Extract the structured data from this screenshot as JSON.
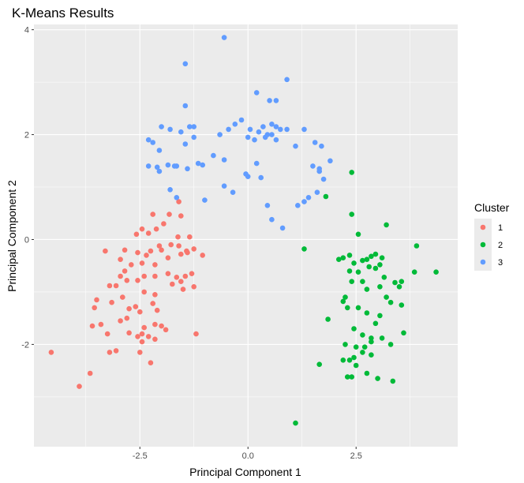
{
  "chart_data": {
    "type": "scatter",
    "title": "K-Means Results",
    "xlabel": "Principal Component 1",
    "ylabel": "Principal Component 2",
    "xlim": [
      -4.95,
      4.85
    ],
    "ylim": [
      -3.95,
      4.1
    ],
    "x_ticks": [
      -2.5,
      0.0,
      2.5
    ],
    "x_tick_labels": [
      "-2.5",
      "0.0",
      "2.5"
    ],
    "y_ticks": [
      -2,
      0,
      2,
      4
    ],
    "y_tick_labels": [
      "-2",
      "0",
      "2",
      "4"
    ],
    "grid": true,
    "legend": {
      "title": "Cluster",
      "position": "right"
    },
    "colors": {
      "panel": "#ebebeb",
      "grid": "#ffffff",
      "1": "#f8766d",
      "2": "#00ba38",
      "3": "#619cff"
    },
    "series": [
      {
        "name": "1",
        "color": "#f8766d",
        "points": [
          [
            -1.6,
            0.72
          ],
          [
            -1.82,
            0.48
          ],
          [
            -1.95,
            0.3
          ],
          [
            -2.12,
            0.2
          ],
          [
            -2.45,
            0.2
          ],
          [
            -2.3,
            0.12
          ],
          [
            -2.58,
            0.1
          ],
          [
            -1.35,
            0.05
          ],
          [
            -1.62,
            0.05
          ],
          [
            -1.78,
            -0.1
          ],
          [
            -1.6,
            -0.12
          ],
          [
            -1.25,
            -0.18
          ],
          [
            -1.42,
            -0.22
          ],
          [
            -1.55,
            -0.28
          ],
          [
            -1.05,
            -0.3
          ],
          [
            -2.05,
            -0.12
          ],
          [
            -2.25,
            -0.22
          ],
          [
            -2.55,
            -0.25
          ],
          [
            -2.85,
            -0.2
          ],
          [
            -3.3,
            -0.22
          ],
          [
            -2.45,
            -0.45
          ],
          [
            -2.7,
            -0.48
          ],
          [
            -2.95,
            -0.38
          ],
          [
            -2.15,
            -0.48
          ],
          [
            -1.85,
            -0.35
          ],
          [
            -2.35,
            -0.3
          ],
          [
            -2.15,
            -0.7
          ],
          [
            -2.4,
            -0.7
          ],
          [
            -2.55,
            -0.78
          ],
          [
            -2.8,
            -0.78
          ],
          [
            -2.95,
            -0.7
          ],
          [
            -3.05,
            -0.88
          ],
          [
            -3.2,
            -0.88
          ],
          [
            -1.85,
            -0.65
          ],
          [
            -1.65,
            -0.72
          ],
          [
            -1.45,
            -0.7
          ],
          [
            -1.3,
            -0.65
          ],
          [
            -1.55,
            -0.8
          ],
          [
            -1.75,
            -0.85
          ],
          [
            -1.5,
            -0.95
          ],
          [
            -1.25,
            -0.9
          ],
          [
            -2.4,
            -1.0
          ],
          [
            -2.15,
            -1.05
          ],
          [
            -2.9,
            -1.1
          ],
          [
            -3.15,
            -1.2
          ],
          [
            -2.2,
            -1.22
          ],
          [
            -2.1,
            -1.35
          ],
          [
            -2.6,
            -1.28
          ],
          [
            -2.75,
            -1.32
          ],
          [
            -3.5,
            -1.15
          ],
          [
            -2.5,
            -1.38
          ],
          [
            -3.55,
            -1.3
          ],
          [
            -2.8,
            -1.5
          ],
          [
            -2.95,
            -1.55
          ],
          [
            -3.4,
            -1.62
          ],
          [
            -2.15,
            -1.62
          ],
          [
            -2.4,
            -1.68
          ],
          [
            -2.0,
            -1.65
          ],
          [
            -1.9,
            -1.72
          ],
          [
            -3.6,
            -1.65
          ],
          [
            -2.45,
            -1.8
          ],
          [
            -2.75,
            -1.78
          ],
          [
            -3.25,
            -1.8
          ],
          [
            -2.55,
            -1.85
          ],
          [
            -1.2,
            -1.8
          ],
          [
            -2.3,
            -1.85
          ],
          [
            -2.45,
            -1.95
          ],
          [
            -2.15,
            -1.9
          ],
          [
            -3.05,
            -2.12
          ],
          [
            -3.2,
            -2.15
          ],
          [
            -2.5,
            -2.15
          ],
          [
            -2.25,
            -2.35
          ],
          [
            -3.65,
            -2.55
          ],
          [
            -3.9,
            -2.8
          ],
          [
            -4.55,
            -2.15
          ],
          [
            -1.55,
            0.45
          ],
          [
            -2.2,
            0.48
          ],
          [
            -2.0,
            -0.2
          ],
          [
            -2.85,
            -0.6
          ],
          [
            -1.4,
            -0.25
          ]
        ]
      },
      {
        "name": "2",
        "color": "#00ba38",
        "points": [
          [
            2.4,
            1.28
          ],
          [
            1.8,
            0.82
          ],
          [
            2.4,
            0.48
          ],
          [
            2.55,
            0.1
          ],
          [
            3.2,
            0.28
          ],
          [
            1.3,
            -0.18
          ],
          [
            3.9,
            -0.12
          ],
          [
            2.2,
            -0.35
          ],
          [
            2.35,
            -0.3
          ],
          [
            2.45,
            -0.45
          ],
          [
            2.65,
            -0.4
          ],
          [
            2.75,
            -0.38
          ],
          [
            2.85,
            -0.32
          ],
          [
            2.95,
            -0.28
          ],
          [
            3.1,
            -0.35
          ],
          [
            2.8,
            -0.52
          ],
          [
            2.95,
            -0.55
          ],
          [
            3.05,
            -0.48
          ],
          [
            2.55,
            -0.62
          ],
          [
            3.15,
            -0.72
          ],
          [
            3.4,
            -0.82
          ],
          [
            3.5,
            -0.9
          ],
          [
            3.85,
            -0.62
          ],
          [
            4.35,
            -0.62
          ],
          [
            2.35,
            -0.6
          ],
          [
            2.4,
            -0.8
          ],
          [
            2.65,
            -0.8
          ],
          [
            2.75,
            -0.95
          ],
          [
            3.05,
            -0.9
          ],
          [
            3.2,
            -1.1
          ],
          [
            3.3,
            -1.2
          ],
          [
            3.55,
            -1.25
          ],
          [
            2.25,
            -1.1
          ],
          [
            2.2,
            -1.18
          ],
          [
            2.3,
            -1.3
          ],
          [
            2.55,
            -1.3
          ],
          [
            2.75,
            -1.4
          ],
          [
            3.05,
            -1.45
          ],
          [
            1.85,
            -1.52
          ],
          [
            2.95,
            -1.6
          ],
          [
            2.45,
            -1.7
          ],
          [
            2.65,
            -1.82
          ],
          [
            2.85,
            -1.88
          ],
          [
            3.1,
            -1.88
          ],
          [
            3.6,
            -1.78
          ],
          [
            2.25,
            -2.0
          ],
          [
            2.5,
            -2.05
          ],
          [
            2.7,
            -2.05
          ],
          [
            2.85,
            -1.95
          ],
          [
            3.3,
            -2.0
          ],
          [
            2.2,
            -2.3
          ],
          [
            2.45,
            -2.25
          ],
          [
            2.65,
            -2.15
          ],
          [
            2.85,
            -2.2
          ],
          [
            1.65,
            -2.38
          ],
          [
            2.5,
            -2.4
          ],
          [
            2.3,
            -2.62
          ],
          [
            2.4,
            -2.62
          ],
          [
            2.75,
            -2.55
          ],
          [
            3.0,
            -2.65
          ],
          [
            3.35,
            -2.7
          ],
          [
            1.1,
            -3.5
          ],
          [
            2.35,
            -2.3
          ],
          [
            3.55,
            -0.8
          ],
          [
            2.1,
            -0.38
          ]
        ]
      },
      {
        "name": "3",
        "color": "#619cff",
        "points": [
          [
            -0.55,
            3.85
          ],
          [
            -1.45,
            3.35
          ],
          [
            0.9,
            3.05
          ],
          [
            0.2,
            2.8
          ],
          [
            0.5,
            2.65
          ],
          [
            0.65,
            2.65
          ],
          [
            -1.45,
            2.55
          ],
          [
            -1.35,
            2.15
          ],
          [
            -1.25,
            2.15
          ],
          [
            0.35,
            2.15
          ],
          [
            0.55,
            2.2
          ],
          [
            -0.3,
            2.2
          ],
          [
            -0.15,
            2.28
          ],
          [
            0.05,
            2.1
          ],
          [
            0.25,
            2.05
          ],
          [
            0.45,
            2.0
          ],
          [
            0.55,
            2.0
          ],
          [
            0.65,
            2.15
          ],
          [
            0.75,
            2.1
          ],
          [
            0.9,
            2.1
          ],
          [
            -1.25,
            1.95
          ],
          [
            -1.55,
            2.05
          ],
          [
            -1.8,
            2.1
          ],
          [
            -2.0,
            2.15
          ],
          [
            -1.45,
            1.82
          ],
          [
            -2.05,
            1.7
          ],
          [
            -2.2,
            1.85
          ],
          [
            -2.3,
            1.9
          ],
          [
            -0.65,
            2.0
          ],
          [
            -0.45,
            2.1
          ],
          [
            0.0,
            1.95
          ],
          [
            0.15,
            1.9
          ],
          [
            0.4,
            1.95
          ],
          [
            0.65,
            1.9
          ],
          [
            1.1,
            1.78
          ],
          [
            1.3,
            2.1
          ],
          [
            1.55,
            1.85
          ],
          [
            1.7,
            1.78
          ],
          [
            1.9,
            1.5
          ],
          [
            1.5,
            1.4
          ],
          [
            1.65,
            1.35
          ],
          [
            -1.15,
            1.45
          ],
          [
            -1.05,
            1.42
          ],
          [
            -1.65,
            1.4
          ],
          [
            -2.3,
            1.4
          ],
          [
            -2.1,
            1.38
          ],
          [
            -1.85,
            1.42
          ],
          [
            -1.4,
            1.35
          ],
          [
            -0.55,
            1.52
          ],
          [
            0.2,
            1.45
          ],
          [
            -2.05,
            1.3
          ],
          [
            -0.05,
            1.25
          ],
          [
            0.0,
            1.2
          ],
          [
            0.3,
            1.18
          ],
          [
            1.65,
            1.3
          ],
          [
            1.75,
            1.15
          ],
          [
            -0.55,
            1.02
          ],
          [
            -1.8,
            0.95
          ],
          [
            -1.65,
            0.8
          ],
          [
            -1.0,
            0.75
          ],
          [
            -0.35,
            0.9
          ],
          [
            1.6,
            0.9
          ],
          [
            1.4,
            0.8
          ],
          [
            1.15,
            0.65
          ],
          [
            0.45,
            0.65
          ],
          [
            0.55,
            0.38
          ],
          [
            0.8,
            0.22
          ],
          [
            1.3,
            0.72
          ],
          [
            -1.7,
            1.4
          ],
          [
            -0.8,
            1.6
          ]
        ]
      }
    ]
  }
}
